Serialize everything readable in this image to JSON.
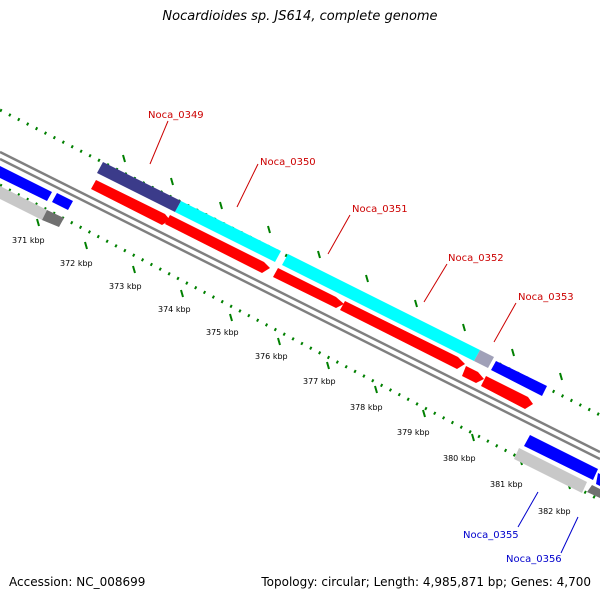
{
  "title": "Nocardioides sp. JS614, complete genome",
  "footer": {
    "accession": "Accession: NC_008699",
    "summary": "Topology: circular; Length: 4,985,871 bp; Genes: 4,700"
  },
  "colors": {
    "forward_cds": "#ff0000",
    "reverse_cds": "#0000ff",
    "navy_feature": "#3b3b8a",
    "cyan_feature": "#00ffff",
    "backbone": "#808080",
    "tick": "#008000",
    "label_forward": "#cc0000",
    "label_reverse": "#0000cc"
  },
  "scale_labels": [
    "371 kbp",
    "372 kbp",
    "373 kbp",
    "374 kbp",
    "375 kbp",
    "376 kbp",
    "377 kbp",
    "378 kbp",
    "379 kbp",
    "380 kbp",
    "381 kbp",
    "382 kbp"
  ],
  "gene_labels": {
    "noca_0349": "Noca_0349",
    "noca_0350": "Noca_0350",
    "noca_0351": "Noca_0351",
    "noca_0352": "Noca_0352",
    "noca_0353": "Noca_0353",
    "noca_0355": "Noca_0355",
    "noca_0356": "Noca_0356"
  }
}
